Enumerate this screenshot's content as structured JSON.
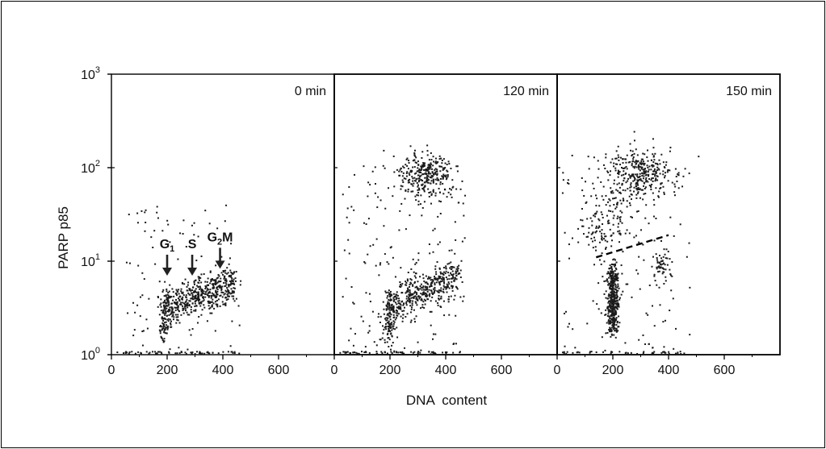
{
  "chart_data": {
    "type": "scatter",
    "ylabel": "PARP p85",
    "xlabel": "DNA  content",
    "xlim": [
      0,
      800
    ],
    "ylim": [
      1,
      1000
    ],
    "yscale": "log",
    "x_ticks": [
      "0",
      "200",
      "400",
      "600"
    ],
    "y_ticks": [
      {
        "base": "10",
        "exp": "0"
      },
      {
        "base": "10",
        "exp": "1"
      },
      {
        "base": "10",
        "exp": "2"
      },
      {
        "base": "10",
        "exp": "3"
      }
    ],
    "grid": false,
    "point_color": "#1a1a1a",
    "panels": [
      {
        "label": "0 min",
        "annotations": [
          {
            "base": "G",
            "sub": "1",
            "post": "",
            "x": 200,
            "y": 7
          },
          {
            "base": "S",
            "sub": "",
            "post": "",
            "x": 290,
            "y": 7
          },
          {
            "base": "G",
            "sub": "2",
            "post": "M",
            "x": 390,
            "y": 8.3
          }
        ],
        "clusters": [
          {
            "x0": 190,
            "x1": 440,
            "y0": 3.2,
            "y1": 5.8,
            "sx": 14,
            "sy": 0.1,
            "n": 520
          },
          {
            "x0": 185,
            "x1": 200,
            "y0": 1.6,
            "y1": 3.8,
            "sx": 10,
            "sy": 0.08,
            "n": 90
          }
        ],
        "background": {
          "x0": 40,
          "x1": 470,
          "y0": 1,
          "y1": 40,
          "n": 90
        },
        "baseline": {
          "x0": 20,
          "x1": 460,
          "n": 60
        }
      },
      {
        "label": "120 min",
        "annotations": [],
        "clusters": [
          {
            "x0": 200,
            "x1": 440,
            "y0": 3.2,
            "y1": 7.0,
            "sx": 16,
            "sy": 0.1,
            "n": 430
          },
          {
            "x0": 190,
            "x1": 205,
            "y0": 1.5,
            "y1": 3.8,
            "sx": 12,
            "sy": 0.09,
            "n": 110
          },
          {
            "x0": 330,
            "x1": 330,
            "y0": 85,
            "y1": 85,
            "sx": 45,
            "sy": 0.12,
            "n": 300
          }
        ],
        "background": {
          "x0": 30,
          "x1": 470,
          "y0": 1,
          "y1": 120,
          "n": 180
        },
        "baseline": {
          "x0": 20,
          "x1": 460,
          "n": 60
        }
      },
      {
        "label": "150 min",
        "annotations": [],
        "clusters": [
          {
            "x0": 200,
            "x1": 200,
            "y0": 1.8,
            "y1": 8.5,
            "sx": 10,
            "sy": 0.06,
            "n": 420
          },
          {
            "x0": 300,
            "x1": 300,
            "y0": 90,
            "y1": 90,
            "sx": 55,
            "sy": 0.13,
            "n": 300
          },
          {
            "x0": 120,
            "x1": 240,
            "y0": 18,
            "y1": 55,
            "sx": 35,
            "sy": 0.15,
            "n": 150
          },
          {
            "x0": 370,
            "x1": 370,
            "y0": 9,
            "y1": 9,
            "sx": 15,
            "sy": 0.1,
            "n": 50
          }
        ],
        "background": {
          "x0": 20,
          "x1": 480,
          "y0": 1,
          "y1": 150,
          "n": 150
        },
        "baseline": {
          "x0": 20,
          "x1": 460,
          "n": 40
        },
        "dash_line": {
          "x0": 140,
          "x1": 400,
          "y0": 11,
          "y1": 19
        }
      }
    ]
  }
}
